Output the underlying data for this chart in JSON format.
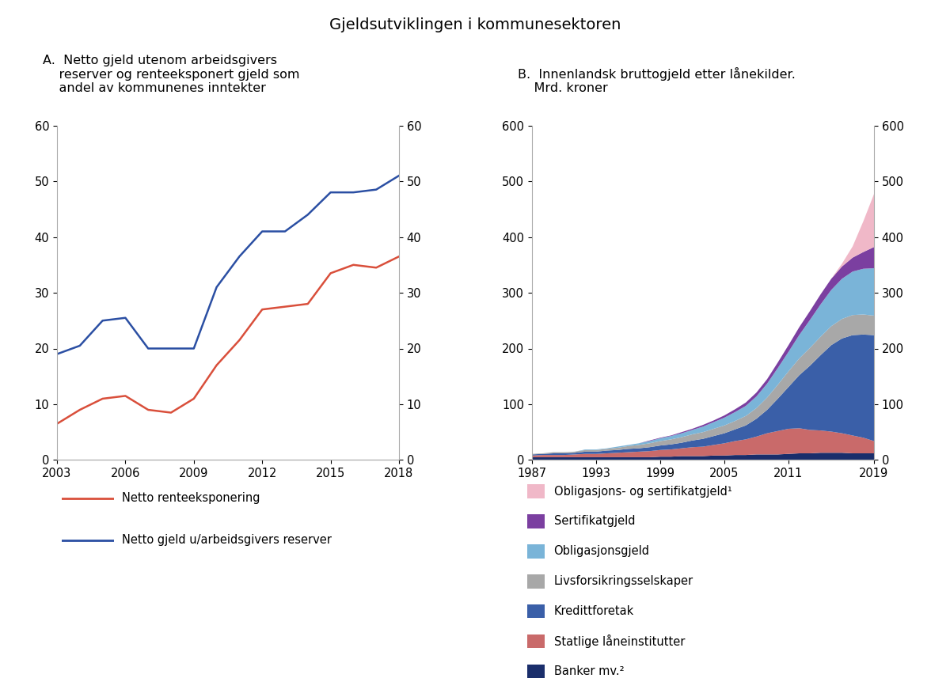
{
  "title": "Gjeldsutviklingen i kommunesektoren",
  "panel_a_title": "A.  Netto gjeld utenom arbeidsgivers\n    reserver og renteeksponert gjeld som\n    andel av kommunenes inntekter",
  "panel_b_title": "B.  Innenlandsk bruttogjeld etter lånekilder.\n    Mrd. kroner",
  "line_years": [
    2003,
    2004,
    2005,
    2006,
    2007,
    2008,
    2009,
    2010,
    2011,
    2012,
    2013,
    2014,
    2015,
    2016,
    2017,
    2018
  ],
  "netto_rente": [
    6.5,
    9.0,
    11.0,
    11.5,
    9.0,
    8.5,
    11.0,
    17.0,
    21.5,
    27.0,
    27.5,
    28.0,
    33.5,
    35.0,
    34.5,
    36.5
  ],
  "netto_gjeld": [
    19.0,
    20.5,
    25.0,
    25.5,
    20.0,
    20.0,
    20.0,
    31.0,
    36.5,
    41.0,
    41.0,
    44.0,
    48.0,
    48.0,
    48.5,
    51.0
  ],
  "line_color_rente": "#d94f3b",
  "line_color_gjeld": "#2b4fa3",
  "panel_a_ylim": [
    0,
    60
  ],
  "panel_a_yticks": [
    0,
    10,
    20,
    30,
    40,
    50,
    60
  ],
  "panel_a_xticks": [
    2003,
    2006,
    2009,
    2012,
    2015,
    2018
  ],
  "stack_years": [
    1987,
    1988,
    1989,
    1990,
    1991,
    1992,
    1993,
    1994,
    1995,
    1996,
    1997,
    1998,
    1999,
    2000,
    2001,
    2002,
    2003,
    2004,
    2005,
    2006,
    2007,
    2008,
    2009,
    2010,
    2011,
    2012,
    2013,
    2014,
    2015,
    2016,
    2017,
    2018,
    2019
  ],
  "banker": [
    5,
    5,
    5,
    5,
    5,
    5,
    5,
    5,
    5,
    5,
    5,
    5,
    6,
    6,
    7,
    7,
    7,
    8,
    8,
    9,
    9,
    10,
    10,
    10,
    11,
    12,
    12,
    13,
    13,
    13,
    12,
    12,
    12
  ],
  "statlige": [
    3,
    4,
    4,
    4,
    5,
    6,
    6,
    7,
    8,
    9,
    10,
    11,
    12,
    13,
    14,
    16,
    17,
    19,
    22,
    25,
    28,
    32,
    38,
    42,
    45,
    45,
    42,
    40,
    38,
    35,
    32,
    28,
    22
  ],
  "kredittforetak": [
    2,
    2,
    3,
    3,
    3,
    4,
    4,
    5,
    5,
    6,
    6,
    7,
    8,
    9,
    10,
    12,
    14,
    16,
    18,
    21,
    25,
    32,
    42,
    58,
    75,
    95,
    115,
    135,
    155,
    170,
    180,
    185,
    190
  ],
  "livsforsikring": [
    1,
    1,
    2,
    2,
    2,
    3,
    3,
    3,
    4,
    5,
    6,
    7,
    8,
    9,
    10,
    11,
    12,
    13,
    14,
    15,
    17,
    19,
    22,
    25,
    28,
    30,
    32,
    33,
    34,
    35,
    36,
    36,
    35
  ],
  "obligasjonsgjeld": [
    0,
    0,
    0,
    0,
    0,
    1,
    1,
    1,
    2,
    2,
    3,
    4,
    5,
    6,
    7,
    8,
    10,
    12,
    14,
    16,
    18,
    21,
    25,
    30,
    35,
    42,
    50,
    58,
    65,
    72,
    78,
    82,
    85
  ],
  "sertifikatgjeld": [
    0,
    0,
    0,
    0,
    0,
    0,
    0,
    0,
    0,
    0,
    0,
    1,
    1,
    1,
    2,
    2,
    3,
    3,
    4,
    5,
    6,
    7,
    8,
    10,
    12,
    14,
    16,
    18,
    20,
    22,
    25,
    30,
    38
  ],
  "obligasjons_sertifikat": [
    0,
    0,
    0,
    0,
    0,
    0,
    0,
    0,
    0,
    0,
    0,
    0,
    0,
    0,
    0,
    0,
    0,
    0,
    0,
    0,
    0,
    0,
    0,
    0,
    0,
    0,
    0,
    0,
    0,
    5,
    20,
    55,
    95
  ],
  "color_banker": "#1a2e6b",
  "color_statlige": "#c96a6a",
  "color_kredittforetak": "#3a5fa8",
  "color_livsforsikring": "#a8a8a8",
  "color_obligasjonsgjeld": "#7ab4d8",
  "color_sertifikatgjeld": "#7b3fa0",
  "color_obligasjons_sertifikat": "#f0b8c8",
  "panel_b_ylim": [
    0,
    600
  ],
  "panel_b_yticks": [
    0,
    100,
    200,
    300,
    400,
    500,
    600
  ],
  "panel_b_xticks": [
    1987,
    1993,
    1999,
    2005,
    2011,
    2019
  ],
  "legend_a": [
    {
      "label": "Netto renteeksponering",
      "color": "#d94f3b"
    },
    {
      "label": "Netto gjeld u/arbeidsgivers reserver",
      "color": "#2b4fa3"
    }
  ],
  "legend_b": [
    {
      "label": "Obligasjons- og sertifikatgjeld¹",
      "color": "#f0b8c8"
    },
    {
      "label": "Sertifikatgjeld",
      "color": "#7b3fa0"
    },
    {
      "label": "Obligasjonsgjeld",
      "color": "#7ab4d8"
    },
    {
      "label": "Livsforsikringsselskaper",
      "color": "#a8a8a8"
    },
    {
      "label": "Kredittforetak",
      "color": "#3a5fa8"
    },
    {
      "label": "Statlige låneinstitutter",
      "color": "#c96a6a"
    },
    {
      "label": "Banker mv.²",
      "color": "#1a2e6b"
    }
  ]
}
